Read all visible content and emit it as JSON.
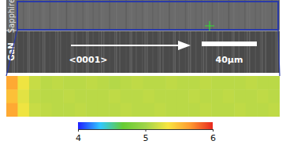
{
  "chart_data": {
    "type": "heatmap",
    "annotations": [
      "Sapphire",
      "GaN",
      "<0001>",
      "40μm"
    ],
    "cells": [
      [
        5.6,
        5.3,
        5.15,
        5.1,
        5.12,
        5.1,
        5.1,
        5.12,
        5.1,
        5.08,
        5.1,
        5.12,
        5.1,
        5.1,
        5.12,
        5.1,
        5.1,
        5.12,
        5.1,
        5.1,
        5.1,
        5.12,
        5.1,
        5.1
      ],
      [
        5.5,
        5.25,
        5.12,
        5.1,
        5.1,
        5.12,
        5.1,
        5.1,
        5.1,
        5.12,
        5.1,
        5.1,
        5.12,
        5.1,
        5.1,
        5.1,
        5.12,
        5.1,
        5.1,
        5.12,
        5.1,
        5.1,
        5.12,
        5.1
      ],
      [
        5.6,
        5.3,
        5.15,
        5.12,
        5.1,
        5.1,
        5.12,
        5.1,
        5.1,
        5.1,
        5.12,
        5.1,
        5.1,
        5.12,
        5.1,
        5.1,
        5.1,
        5.12,
        5.1,
        5.1,
        5.12,
        5.1,
        5.1,
        5.12
      ]
    ],
    "colorbar": {
      "range": [
        4,
        6
      ],
      "ticks": [
        4,
        5,
        6
      ]
    }
  }
}
